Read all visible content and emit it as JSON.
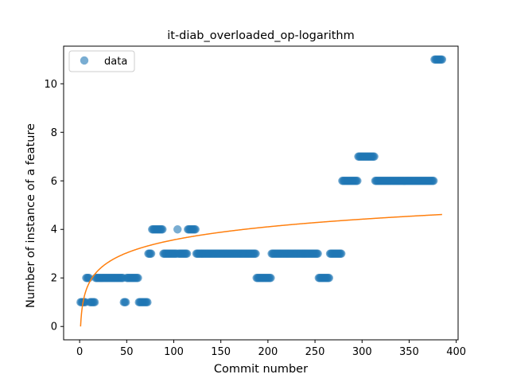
{
  "chart_data": {
    "type": "scatter",
    "title": "it-diab_overloaded_op-logarithm",
    "xlabel": "Commit number",
    "ylabel": "Number of instance of a feature",
    "xlim": [
      -17,
      402
    ],
    "ylim": [
      -0.55,
      11.55
    ],
    "xticks": [
      0,
      50,
      100,
      150,
      200,
      250,
      300,
      350,
      400
    ],
    "yticks": [
      0,
      2,
      4,
      6,
      8,
      10
    ],
    "grid": false,
    "legend": {
      "position": "top-left",
      "entries": [
        "data"
      ]
    },
    "colors": {
      "points": "#1f77b4",
      "fit": "#ff7f0e"
    },
    "series": [
      {
        "name": "data",
        "style": "markers",
        "segments": [
          {
            "from": 1,
            "to": 6,
            "y": 1
          },
          {
            "from": 7,
            "to": 10,
            "y": 2
          },
          {
            "from": 11,
            "to": 16,
            "y": 1
          },
          {
            "from": 17,
            "to": 46,
            "y": 2
          },
          {
            "from": 47,
            "to": 49,
            "y": 1
          },
          {
            "from": 50,
            "to": 62,
            "y": 2
          },
          {
            "from": 63,
            "to": 72,
            "y": 1
          },
          {
            "from": 73,
            "to": 76,
            "y": 3
          },
          {
            "from": 77,
            "to": 88,
            "y": 4
          },
          {
            "from": 89,
            "to": 103,
            "y": 3
          },
          {
            "from": 104,
            "to": 104,
            "y": 4
          },
          {
            "from": 105,
            "to": 114,
            "y": 3
          },
          {
            "from": 115,
            "to": 123,
            "y": 4
          },
          {
            "from": 124,
            "to": 187,
            "y": 3
          },
          {
            "from": 188,
            "to": 203,
            "y": 2
          },
          {
            "from": 204,
            "to": 253,
            "y": 3
          },
          {
            "from": 254,
            "to": 265,
            "y": 2
          },
          {
            "from": 266,
            "to": 278,
            "y": 3
          },
          {
            "from": 279,
            "to": 295,
            "y": 6
          },
          {
            "from": 296,
            "to": 313,
            "y": 7
          },
          {
            "from": 314,
            "to": 376,
            "y": 6
          },
          {
            "from": 377,
            "to": 385,
            "y": 11
          }
        ]
      },
      {
        "name": "fit",
        "style": "line",
        "model": "logarithmic",
        "coefficient": 0.775,
        "x_range": [
          1,
          385
        ]
      }
    ]
  }
}
